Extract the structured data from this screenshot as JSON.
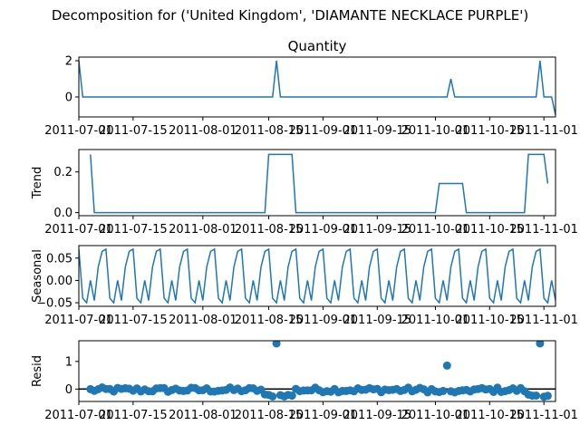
{
  "figure": {
    "suptitle": "Decomposition for ('United Kingdom', 'DIAMANTE NECKLACE PURPLE')"
  },
  "colors": {
    "line": "#1f77b4",
    "zero_line": "#000000",
    "axes": "#000000",
    "background": "#ffffff"
  },
  "chart_data": [
    {
      "type": "line",
      "title": "Quantity",
      "ylabel": "",
      "ylim": [
        -1.1,
        2.2
      ],
      "yticks": [
        0,
        2
      ],
      "ytick_labels": [
        "0",
        "2"
      ],
      "xlim": [
        0,
        123
      ],
      "xticks": [
        0,
        14,
        32,
        49,
        63,
        77,
        92,
        106,
        120
      ],
      "xtick_labels": [
        "2011-07-01",
        "2011-07-15",
        "2011-08-01",
        "2011-08-15",
        "2011-09-01",
        "2011-09-15",
        "2011-10-01",
        "2011-10-15",
        "2011-11-01"
      ],
      "series": [
        {
          "x": [
            0,
            1,
            50,
            51,
            52,
            95,
            96,
            97,
            118,
            119,
            120,
            121,
            122,
            123
          ],
          "y": [
            2,
            0,
            0,
            2,
            0,
            0,
            1,
            0,
            0,
            2,
            0,
            0,
            0,
            -1
          ]
        }
      ]
    },
    {
      "type": "line",
      "title": "",
      "ylabel": "Trend",
      "ylim": [
        -0.015,
        0.31
      ],
      "yticks": [
        0.0,
        0.2
      ],
      "ytick_labels": [
        "0.0",
        "0.2"
      ],
      "xlim": [
        0,
        123
      ],
      "xticks": [
        0,
        14,
        32,
        49,
        63,
        77,
        92,
        106,
        120
      ],
      "xtick_labels": [
        "2011-07-01",
        "2011-07-15",
        "2011-08-01",
        "2011-08-15",
        "2011-09-01",
        "2011-09-15",
        "2011-10-01",
        "2011-10-15",
        "2011-11-01"
      ],
      "series": [
        {
          "x": [
            3,
            4,
            48,
            49,
            55,
            56,
            92,
            93,
            99,
            100,
            115,
            116,
            120,
            121
          ],
          "y": [
            0.286,
            0,
            0,
            0.286,
            0.286,
            0,
            0,
            0.143,
            0.143,
            0,
            0,
            0.286,
            0.286,
            0.143
          ]
        }
      ]
    },
    {
      "type": "line",
      "title": "",
      "ylabel": "Seasonal",
      "ylim": [
        -0.058,
        0.078
      ],
      "yticks": [
        -0.05,
        0.0,
        0.05
      ],
      "ytick_labels": [
        "−0.05",
        "0.00",
        "0.05"
      ],
      "xlim": [
        0,
        123
      ],
      "xticks": [
        0,
        14,
        32,
        49,
        63,
        77,
        92,
        106,
        120
      ],
      "xtick_labels": [
        "2011-07-01",
        "2011-07-15",
        "2011-08-01",
        "2011-08-15",
        "2011-09-01",
        "2011-09-15",
        "2011-10-01",
        "2011-10-15",
        "2011-11-01"
      ],
      "period": 7,
      "pattern": [
        0.07,
        -0.04,
        -0.05,
        0.0,
        -0.045,
        0.03,
        0.065
      ],
      "n_points": 124
    },
    {
      "type": "scatter",
      "title": "",
      "ylabel": "Resid",
      "ylim": [
        -0.45,
        1.75
      ],
      "yticks": [
        0,
        1
      ],
      "ytick_labels": [
        "0",
        "1"
      ],
      "xlim": [
        0,
        123
      ],
      "xticks": [
        0,
        14,
        32,
        49,
        63,
        77,
        92,
        106,
        120
      ],
      "xtick_labels": [
        "2011-07-01",
        "2011-07-15",
        "2011-08-01",
        "2011-08-15",
        "2011-09-01",
        "2011-09-15",
        "2011-10-01",
        "2011-10-15",
        "2011-11-01"
      ],
      "zero_line": true,
      "x_range": [
        3,
        121
      ],
      "outliers": [
        {
          "x": 51,
          "y": 1.65
        },
        {
          "x": 95,
          "y": 0.85
        },
        {
          "x": 119,
          "y": 1.65
        }
      ]
    }
  ]
}
